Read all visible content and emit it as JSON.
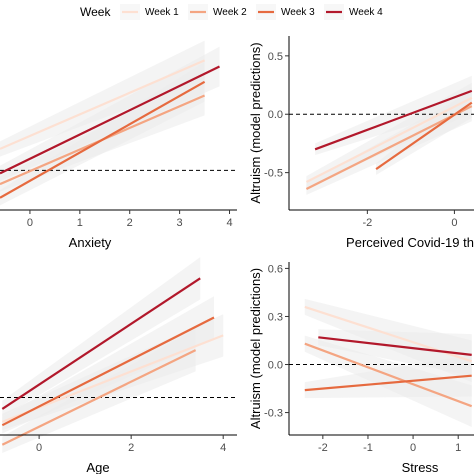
{
  "legend": {
    "title": "Week",
    "items": [
      {
        "label": "Week 1",
        "color": "#fde0d2"
      },
      {
        "label": "Week 2",
        "color": "#f4a582"
      },
      {
        "label": "Week 3",
        "color": "#e66a3f"
      },
      {
        "label": "Week 4",
        "color": "#b2182b"
      }
    ]
  },
  "chart_data": [
    {
      "type": "line",
      "xlabel": "Anxiety",
      "ylabel": "",
      "xticks": [
        "0",
        "1",
        "2",
        "3",
        "4"
      ],
      "yticks": [],
      "reference_line": "dashed horizontal",
      "series": [
        {
          "name": "Week 1",
          "x": [
            -0.6,
            3.5
          ],
          "y": [
            -0.32,
            0.26
          ]
        },
        {
          "name": "Week 2",
          "x": [
            -0.6,
            3.5
          ],
          "y": [
            -0.55,
            0.03
          ]
        },
        {
          "name": "Week 3",
          "x": [
            -0.6,
            3.5
          ],
          "y": [
            -0.64,
            0.12
          ]
        },
        {
          "name": "Week 4",
          "x": [
            -0.6,
            3.8
          ],
          "y": [
            -0.48,
            0.22
          ]
        }
      ]
    },
    {
      "type": "line",
      "xlabel": "Perceived Covid-19 th",
      "ylabel": "Altruism (model predictions)",
      "xticks": [
        "-2",
        "0"
      ],
      "yticks": [
        "-0.5",
        "0.0",
        "0.5"
      ],
      "reference_line": "y = 0",
      "series": [
        {
          "name": "Week 1",
          "x": [
            -3.4,
            0.4
          ],
          "y": [
            -0.58,
            0.14
          ]
        },
        {
          "name": "Week 2",
          "x": [
            -3.4,
            0.4
          ],
          "y": [
            -0.64,
            0.07
          ]
        },
        {
          "name": "Week 3",
          "x": [
            -1.8,
            0.4
          ],
          "y": [
            -0.47,
            0.1
          ]
        },
        {
          "name": "Week 4",
          "x": [
            -3.2,
            0.4
          ],
          "y": [
            -0.3,
            0.2
          ]
        }
      ]
    },
    {
      "type": "line",
      "xlabel": "Age",
      "ylabel": "",
      "xticks": [
        "0",
        "2",
        "4"
      ],
      "yticks": [],
      "reference_line": "dashed horizontal",
      "series": [
        {
          "name": "Week 1",
          "x": [
            -0.8,
            4.0
          ],
          "y": [
            -0.38,
            0.15
          ]
        },
        {
          "name": "Week 2",
          "x": [
            -0.8,
            3.4
          ],
          "y": [
            -0.52,
            0.06
          ]
        },
        {
          "name": "Week 3",
          "x": [
            -0.8,
            3.8
          ],
          "y": [
            -0.4,
            0.26
          ]
        },
        {
          "name": "Week 4",
          "x": [
            -0.8,
            3.5
          ],
          "y": [
            -0.3,
            0.5
          ]
        }
      ]
    },
    {
      "type": "line",
      "xlabel": "Stress",
      "ylabel": "Altruism (model predictions)",
      "xticks": [
        "-2",
        "-1",
        "0",
        "1"
      ],
      "yticks": [
        "-0.3",
        "0.0",
        "0.3",
        "0.6"
      ],
      "reference_line": "y = 0",
      "series": [
        {
          "name": "Week 1",
          "x": [
            -2.4,
            1.3
          ],
          "y": [
            0.36,
            0.02
          ]
        },
        {
          "name": "Week 2",
          "x": [
            -2.4,
            1.3
          ],
          "y": [
            0.13,
            -0.26
          ]
        },
        {
          "name": "Week 3",
          "x": [
            -2.4,
            1.3
          ],
          "y": [
            -0.16,
            -0.07
          ]
        },
        {
          "name": "Week 4",
          "x": [
            -2.1,
            1.3
          ],
          "y": [
            0.17,
            0.06
          ]
        }
      ]
    }
  ]
}
